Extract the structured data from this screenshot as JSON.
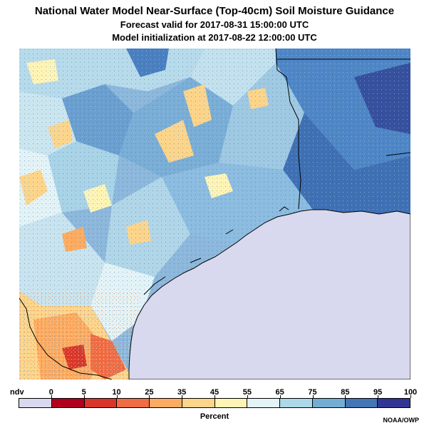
{
  "header": {
    "title": "National Water Model Near-Surface (Top-40cm) Soil Moisture Guidance",
    "forecast": "Forecast valid for 2017-08-31 15:00:00 UTC",
    "init": "Model initialization at 2017-08-22 12:00:00 UTC"
  },
  "map": {
    "region": "Texas / Louisiana Gulf Coast",
    "water_color": "#d8d8ee",
    "border_color": "#000000"
  },
  "legend": {
    "unit": "Percent",
    "labels": [
      "ndv",
      "0",
      "5",
      "10",
      "25",
      "35",
      "45",
      "55",
      "65",
      "75",
      "85",
      "95",
      "100"
    ],
    "colors": [
      "#d8d8ee",
      "#b0001e",
      "#d8362a",
      "#f06c44",
      "#fcac62",
      "#fdd58a",
      "#fef4b6",
      "#e3f3f6",
      "#acd8e8",
      "#74add2",
      "#4475b4",
      "#313695"
    ]
  },
  "credit": "NOAA/OWP"
}
